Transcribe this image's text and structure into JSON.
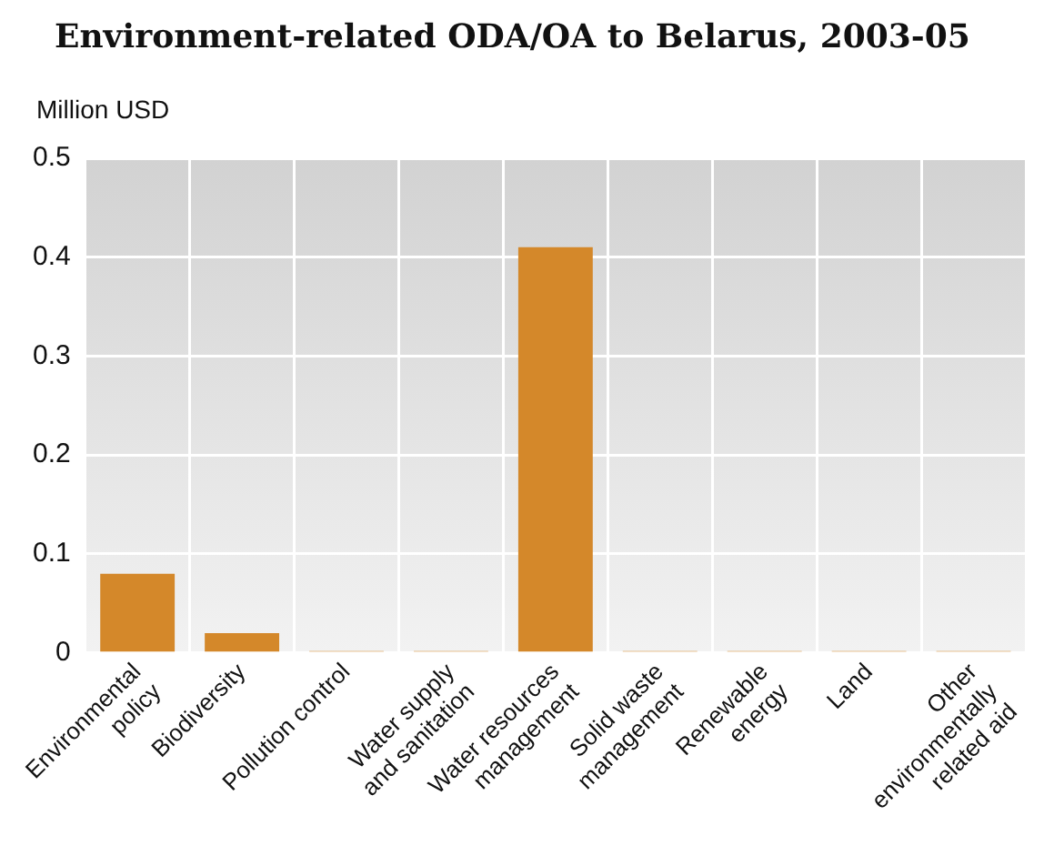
{
  "chart_data": {
    "type": "bar",
    "title": "Environment-related ODA/OA to Belarus, 2003-05",
    "ylabel": "Million USD",
    "categories": [
      "Environmental\npolicy",
      "Biodiversity",
      "Pollution control",
      "Water supply\nand sanitation",
      "Water resources\nmanagement",
      "Solid waste\nmanagement",
      "Renewable\nenergy",
      "Land",
      "Other\nenvironmentally\nrelated aid"
    ],
    "values": [
      0.08,
      0.02,
      0,
      0,
      0.41,
      0,
      0,
      0,
      0
    ],
    "color": "#d4882a",
    "ylim": [
      0,
      0.5
    ],
    "yticks": [
      0,
      0.1,
      0.2,
      0.3,
      0.4,
      0.5
    ],
    "grid": true
  }
}
